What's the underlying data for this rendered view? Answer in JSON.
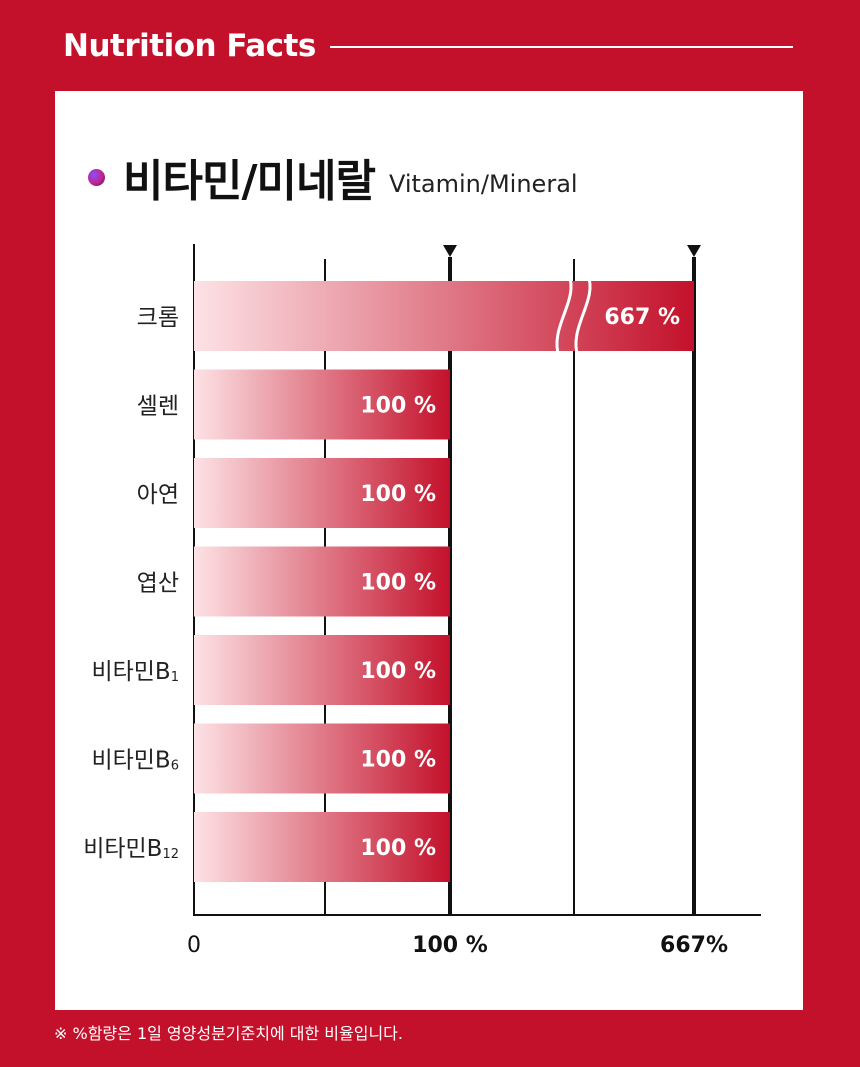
{
  "header": {
    "title": "Nutrition Facts"
  },
  "chart_data": {
    "type": "bar",
    "orientation": "horizontal",
    "title": "비타민/미네랄",
    "subtitle": "Vitamin/Mineral",
    "categories": [
      "크롬",
      "셀렌",
      "아연",
      "엽산",
      "비타민B1",
      "비타민B6",
      "비타민B12"
    ],
    "category_labels": [
      {
        "main": "크롬",
        "sub": ""
      },
      {
        "main": "셀렌",
        "sub": ""
      },
      {
        "main": "아연",
        "sub": ""
      },
      {
        "main": "엽산",
        "sub": ""
      },
      {
        "main": "비타민B",
        "sub": "1"
      },
      {
        "main": "비타민B",
        "sub": "6"
      },
      {
        "main": "비타민B",
        "sub": "12"
      }
    ],
    "values": [
      667,
      100,
      100,
      100,
      100,
      100,
      100
    ],
    "value_labels": [
      "667 %",
      "100 %",
      "100 %",
      "100 %",
      "100 %",
      "100 %",
      "100 %"
    ],
    "x_ticks": [
      {
        "label": "0",
        "value": 0
      },
      {
        "label": "100 %",
        "value": 100
      },
      {
        "label": "667%",
        "value": 667
      }
    ],
    "axis_break": true,
    "grid": true,
    "reference_markers": [
      100,
      667
    ],
    "colors": {
      "bar_start": "#fde2e5",
      "bar_end": "#c3112b",
      "background": "#c3112b"
    }
  },
  "footnote": "※ %함량은 1일 영양성분기준치에 대한 비율입니다."
}
